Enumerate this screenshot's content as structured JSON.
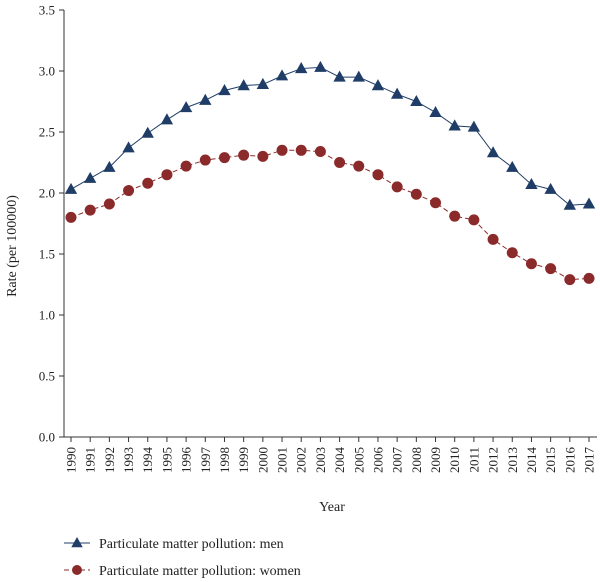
{
  "chart_data": {
    "type": "line",
    "title": "",
    "xlabel": "Year",
    "ylabel": "Rate (per 100000)",
    "ylim": [
      0,
      3.5
    ],
    "yticks": [
      "0.0",
      "0.5",
      "1.0",
      "1.5",
      "2.0",
      "2.5",
      "3.0",
      "3.5"
    ],
    "grid": false,
    "legend_position": "bottom-left",
    "x": [
      "1990",
      "1991",
      "1992",
      "1993",
      "1994",
      "1995",
      "1996",
      "1997",
      "1998",
      "1999",
      "2000",
      "2001",
      "2002",
      "2003",
      "2004",
      "2005",
      "2006",
      "2007",
      "2008",
      "2009",
      "2010",
      "2011",
      "2012",
      "2013",
      "2014",
      "2015",
      "2016",
      "2017"
    ],
    "series": [
      {
        "name": "Particulate matter pollution: men",
        "color": "#1f3d66",
        "marker": "triangle",
        "line_style": "solid",
        "values": [
          2.03,
          2.12,
          2.21,
          2.37,
          2.49,
          2.6,
          2.7,
          2.76,
          2.84,
          2.88,
          2.89,
          2.96,
          3.02,
          3.03,
          2.95,
          2.95,
          2.88,
          2.81,
          2.75,
          2.66,
          2.55,
          2.54,
          2.33,
          2.21,
          2.07,
          2.03,
          1.9,
          1.91
        ]
      },
      {
        "name": "Particulate matter pollution: women",
        "color": "#8b2a2a",
        "marker": "circle",
        "line_style": "dashed",
        "values": [
          1.8,
          1.86,
          1.91,
          2.02,
          2.08,
          2.15,
          2.22,
          2.27,
          2.29,
          2.31,
          2.3,
          2.35,
          2.35,
          2.34,
          2.25,
          2.22,
          2.15,
          2.05,
          1.99,
          1.92,
          1.81,
          1.78,
          1.62,
          1.51,
          1.42,
          1.38,
          1.29,
          1.3
        ]
      }
    ]
  }
}
